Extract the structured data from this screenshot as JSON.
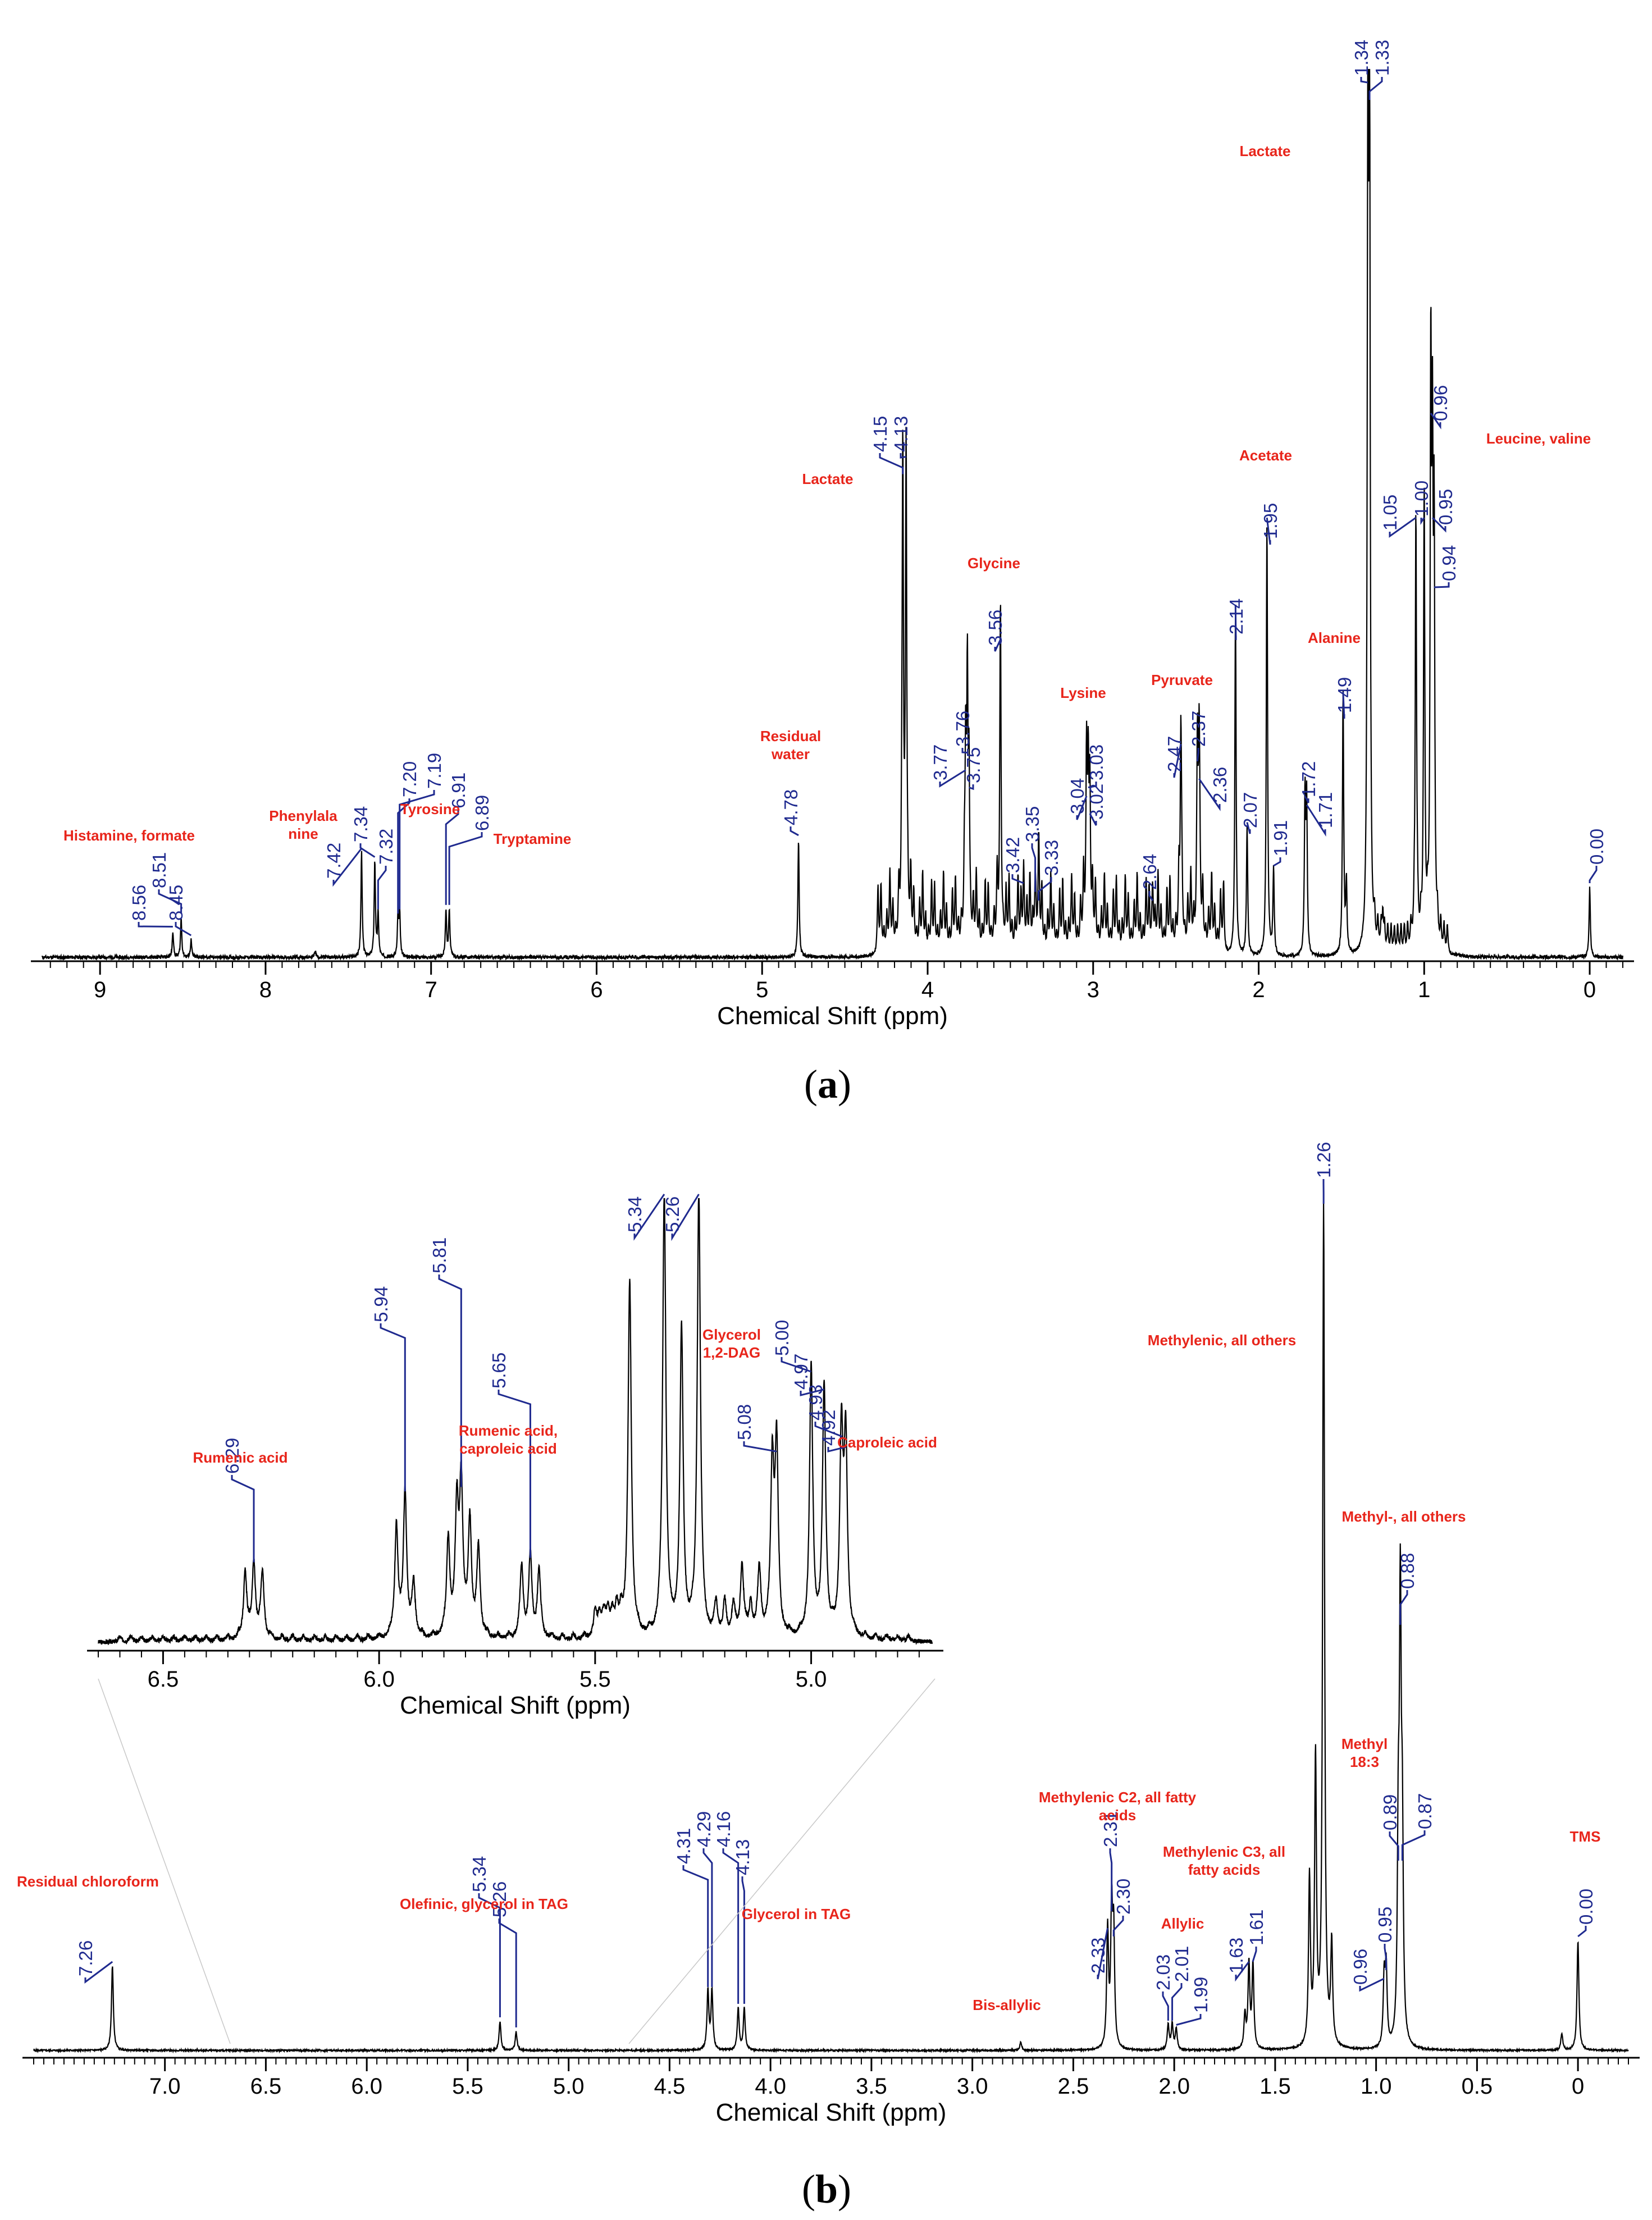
{
  "chart_data": [
    {
      "panel": "(a)",
      "type": "line",
      "xlabel": "Chemical Shift (ppm)",
      "xlim": [
        9.35,
        -0.2
      ],
      "x_reversed": true,
      "x_ticks": [
        "9",
        "8",
        "7",
        "6",
        "5",
        "4",
        "3",
        "2",
        "1",
        "0"
      ],
      "line_color": "#000000",
      "peak_label_color": "#1f1f8f",
      "annotation_color": "#e8251b",
      "peaks": [
        {
          "x": 8.56,
          "h": 0.03
        },
        {
          "x": 8.51,
          "h": 0.045
        },
        {
          "x": 8.45,
          "h": 0.02
        },
        {
          "x": 7.42,
          "h": 0.12
        },
        {
          "x": 7.34,
          "h": 0.11
        },
        {
          "x": 7.32,
          "h": 0.05
        },
        {
          "x": 7.2,
          "h": 0.045
        },
        {
          "x": 7.19,
          "h": 0.05
        },
        {
          "x": 6.91,
          "h": 0.055
        },
        {
          "x": 6.89,
          "h": 0.055
        },
        {
          "x": 4.78,
          "h": 0.135
        },
        {
          "x": 4.15,
          "h": 0.55
        },
        {
          "x": 4.13,
          "h": 0.57
        },
        {
          "x": 3.77,
          "h": 0.21
        },
        {
          "x": 3.76,
          "h": 0.23
        },
        {
          "x": 3.75,
          "h": 0.19
        },
        {
          "x": 3.56,
          "h": 0.36
        },
        {
          "x": 3.42,
          "h": 0.08
        },
        {
          "x": 3.35,
          "h": 0.07
        },
        {
          "x": 3.33,
          "h": 0.06
        },
        {
          "x": 3.04,
          "h": 0.18
        },
        {
          "x": 3.03,
          "h": 0.19
        },
        {
          "x": 3.02,
          "h": 0.16
        },
        {
          "x": 2.64,
          "h": 0.06
        },
        {
          "x": 2.47,
          "h": 0.24
        },
        {
          "x": 2.37,
          "h": 0.22
        },
        {
          "x": 2.36,
          "h": 0.2
        },
        {
          "x": 2.14,
          "h": 0.4
        },
        {
          "x": 2.07,
          "h": 0.15
        },
        {
          "x": 1.95,
          "h": 0.5
        },
        {
          "x": 1.91,
          "h": 0.1
        },
        {
          "x": 1.72,
          "h": 0.18
        },
        {
          "x": 1.71,
          "h": 0.17
        },
        {
          "x": 1.49,
          "h": 0.3
        },
        {
          "x": 1.34,
          "h": 1.0
        },
        {
          "x": 1.33,
          "h": 0.98
        },
        {
          "x": 1.05,
          "h": 0.5
        },
        {
          "x": 1.0,
          "h": 0.5
        },
        {
          "x": 0.96,
          "h": 0.62
        },
        {
          "x": 0.95,
          "h": 0.5
        },
        {
          "x": 0.94,
          "h": 0.42
        },
        {
          "x": 0.0,
          "h": 0.08
        }
      ],
      "peak_labels": [
        {
          "x": 8.56,
          "text": "8.56"
        },
        {
          "x": 8.51,
          "text": "8.51"
        },
        {
          "x": 8.45,
          "text": "8.45"
        },
        {
          "x": 7.42,
          "text": "7.42"
        },
        {
          "x": 7.34,
          "text": "7.34"
        },
        {
          "x": 7.32,
          "text": "7.32"
        },
        {
          "x": 7.2,
          "text": "7.20"
        },
        {
          "x": 7.19,
          "text": "7.19"
        },
        {
          "x": 6.91,
          "text": "6.91"
        },
        {
          "x": 6.89,
          "text": "6.89"
        },
        {
          "x": 4.78,
          "text": "4.78"
        },
        {
          "x": 4.15,
          "text": "4.15"
        },
        {
          "x": 4.13,
          "text": "4.13"
        },
        {
          "x": 3.77,
          "text": "3.77"
        },
        {
          "x": 3.76,
          "text": "3.76"
        },
        {
          "x": 3.75,
          "text": "3.75"
        },
        {
          "x": 3.56,
          "text": "3.56"
        },
        {
          "x": 3.42,
          "text": "3.42"
        },
        {
          "x": 3.35,
          "text": "3.35"
        },
        {
          "x": 3.33,
          "text": "3.33"
        },
        {
          "x": 3.04,
          "text": "3.04"
        },
        {
          "x": 3.03,
          "text": "3.03"
        },
        {
          "x": 3.02,
          "text": "3.02"
        },
        {
          "x": 2.64,
          "text": "2.64"
        },
        {
          "x": 2.47,
          "text": "2.47"
        },
        {
          "x": 2.37,
          "text": "2.37"
        },
        {
          "x": 2.36,
          "text": "2.36"
        },
        {
          "x": 2.14,
          "text": "2.14"
        },
        {
          "x": 2.07,
          "text": "2.07"
        },
        {
          "x": 1.95,
          "text": "1.95"
        },
        {
          "x": 1.91,
          "text": "1.91"
        },
        {
          "x": 1.72,
          "text": "1.72"
        },
        {
          "x": 1.71,
          "text": "1.71"
        },
        {
          "x": 1.49,
          "text": "1.49"
        },
        {
          "x": 1.34,
          "text": "1.34"
        },
        {
          "x": 1.33,
          "text": "1.33"
        },
        {
          "x": 1.05,
          "text": "1.05"
        },
        {
          "x": 1.0,
          "text": "1.00"
        },
        {
          "x": 0.96,
          "text": "0.96"
        },
        {
          "x": 0.95,
          "text": "0.95"
        },
        {
          "x": 0.94,
          "text": "0.94"
        },
        {
          "x": 0.0,
          "text": "0.00"
        }
      ],
      "annotations": [
        {
          "text": "Histamine, formate"
        },
        {
          "text": "Phenylala nine"
        },
        {
          "text": "Tyrosine"
        },
        {
          "text": "Tryptamine"
        },
        {
          "text": "Residual water"
        },
        {
          "text": "Lactate"
        },
        {
          "text": "Glycine"
        },
        {
          "text": "Lysine"
        },
        {
          "text": "Pyruvate"
        },
        {
          "text": "Acetate"
        },
        {
          "text": "Alanine"
        },
        {
          "text": "Lactate"
        },
        {
          "text": "Leucine, valine"
        }
      ]
    },
    {
      "panel": "(b)",
      "type": "line",
      "xlabel": "Chemical Shift (ppm)",
      "xlim": [
        7.65,
        -0.25
      ],
      "x_reversed": true,
      "x_ticks": [
        "7.0",
        "6.5",
        "6.0",
        "5.5",
        "5.0",
        "4.5",
        "4.0",
        "3.5",
        "3.0",
        "2.5",
        "2.0",
        "1.5",
        "1.0",
        "0.5",
        "0"
      ],
      "peaks": [
        {
          "x": 7.26,
          "h": 0.1
        },
        {
          "x": 5.34,
          "h": 0.034
        },
        {
          "x": 5.26,
          "h": 0.022
        },
        {
          "x": 4.31,
          "h": 0.07
        },
        {
          "x": 4.29,
          "h": 0.07
        },
        {
          "x": 4.16,
          "h": 0.05
        },
        {
          "x": 4.13,
          "h": 0.05
        },
        {
          "x": 2.33,
          "h": 0.14
        },
        {
          "x": 2.31,
          "h": 0.16
        },
        {
          "x": 2.3,
          "h": 0.13
        },
        {
          "x": 2.03,
          "h": 0.03
        },
        {
          "x": 2.01,
          "h": 0.03
        },
        {
          "x": 1.99,
          "h": 0.025
        },
        {
          "x": 1.63,
          "h": 0.1
        },
        {
          "x": 1.61,
          "h": 0.1
        },
        {
          "x": 1.26,
          "h": 1.0
        },
        {
          "x": 0.96,
          "h": 0.08
        },
        {
          "x": 0.95,
          "h": 0.09
        },
        {
          "x": 0.89,
          "h": 0.22
        },
        {
          "x": 0.88,
          "h": 0.5
        },
        {
          "x": 0.87,
          "h": 0.22
        },
        {
          "x": 0.0,
          "h": 0.13
        }
      ],
      "peak_labels": [
        {
          "x": 7.26,
          "text": "7.26"
        },
        {
          "x": 5.34,
          "text": "5.34"
        },
        {
          "x": 5.26,
          "text": "5.26"
        },
        {
          "x": 4.31,
          "text": "4.31"
        },
        {
          "x": 4.29,
          "text": "4.29"
        },
        {
          "x": 4.16,
          "text": "4.16"
        },
        {
          "x": 4.13,
          "text": "4.13"
        },
        {
          "x": 2.33,
          "text": "2.33"
        },
        {
          "x": 2.31,
          "text": "2.31"
        },
        {
          "x": 2.3,
          "text": "2.30"
        },
        {
          "x": 2.03,
          "text": "2.03"
        },
        {
          "x": 2.01,
          "text": "2.01"
        },
        {
          "x": 1.99,
          "text": "1.99"
        },
        {
          "x": 1.63,
          "text": "1.63"
        },
        {
          "x": 1.61,
          "text": "1.61"
        },
        {
          "x": 1.26,
          "text": "1.26"
        },
        {
          "x": 0.96,
          "text": "0.96"
        },
        {
          "x": 0.95,
          "text": "0.95"
        },
        {
          "x": 0.89,
          "text": "0.89"
        },
        {
          "x": 0.88,
          "text": "0.88"
        },
        {
          "x": 0.87,
          "text": "0.87"
        },
        {
          "x": 0.0,
          "text": "0.00"
        }
      ],
      "annotations": [
        {
          "text": "Residual chloroform"
        },
        {
          "text": "Olefinic, glycerol in TAG"
        },
        {
          "text": "Glycerol in TAG"
        },
        {
          "text": "Bis-allylic"
        },
        {
          "text": "Methylenic C2, all fatty acids"
        },
        {
          "text": "Allylic"
        },
        {
          "text": "Methylenic C3, all fatty acids"
        },
        {
          "text": "Methylenic, all others"
        },
        {
          "text": "Methyl-, all others"
        },
        {
          "text": "Methyl 18:3"
        },
        {
          "text": "TMS"
        }
      ],
      "inset": {
        "type": "line",
        "xlabel": "Chemical Shift (ppm)",
        "xlim": [
          6.65,
          4.72
        ],
        "x_ticks": [
          "6.5",
          "6.0",
          "5.5",
          "5.0"
        ],
        "peaks": [
          {
            "x": 6.31,
            "h": 0.15
          },
          {
            "x": 6.29,
            "h": 0.17
          },
          {
            "x": 6.27,
            "h": 0.15
          },
          {
            "x": 5.96,
            "h": 0.25
          },
          {
            "x": 5.94,
            "h": 0.33
          },
          {
            "x": 5.92,
            "h": 0.12
          },
          {
            "x": 5.84,
            "h": 0.22
          },
          {
            "x": 5.82,
            "h": 0.28
          },
          {
            "x": 5.81,
            "h": 0.34
          },
          {
            "x": 5.79,
            "h": 0.26
          },
          {
            "x": 5.77,
            "h": 0.2
          },
          {
            "x": 5.67,
            "h": 0.16
          },
          {
            "x": 5.65,
            "h": 0.18
          },
          {
            "x": 5.63,
            "h": 0.15
          },
          {
            "x": 5.42,
            "h": 0.8
          },
          {
            "x": 5.34,
            "h": 1.0
          },
          {
            "x": 5.3,
            "h": 0.68
          },
          {
            "x": 5.26,
            "h": 1.0
          },
          {
            "x": 5.16,
            "h": 0.09
          },
          {
            "x": 5.12,
            "h": 0.08
          },
          {
            "x": 5.09,
            "h": 0.38
          },
          {
            "x": 5.08,
            "h": 0.42
          },
          {
            "x": 5.0,
            "h": 0.6
          },
          {
            "x": 4.97,
            "h": 0.56
          },
          {
            "x": 4.93,
            "h": 0.45
          },
          {
            "x": 4.92,
            "h": 0.43
          }
        ],
        "peak_labels": [
          {
            "x": 6.29,
            "text": "6.29"
          },
          {
            "x": 5.94,
            "text": "5.94"
          },
          {
            "x": 5.81,
            "text": "5.81"
          },
          {
            "x": 5.65,
            "text": "5.65"
          },
          {
            "x": 5.34,
            "text": "5.34"
          },
          {
            "x": 5.26,
            "text": "5.26"
          },
          {
            "x": 5.08,
            "text": "5.08"
          },
          {
            "x": 5.0,
            "text": "5.00"
          },
          {
            "x": 4.97,
            "text": "4.97"
          },
          {
            "x": 4.93,
            "text": "4.93"
          },
          {
            "x": 4.92,
            "text": "4.92"
          }
        ],
        "annotations": [
          {
            "text": "Rumenic acid"
          },
          {
            "text": "Rumenic acid, caproleic acid"
          },
          {
            "text": "Glycerol 1,2-DAG"
          },
          {
            "text": "Caproleic acid"
          }
        ]
      }
    }
  ],
  "panel_labels": {
    "a": "a",
    "b": "b"
  }
}
